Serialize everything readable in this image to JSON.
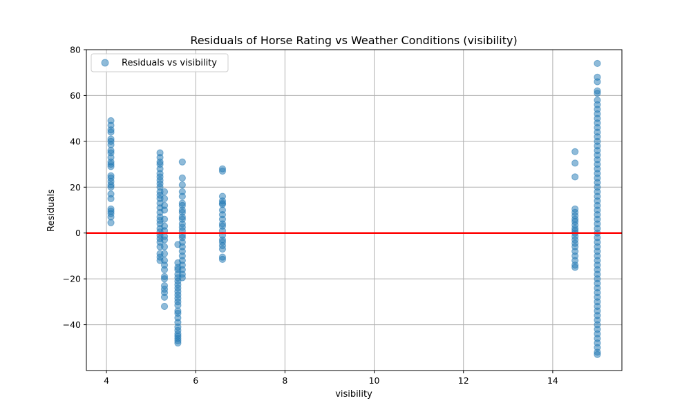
{
  "chart_data": {
    "type": "scatter",
    "title": "Residuals of Horse Rating vs Weather Conditions (visibility)",
    "xlabel": "visibility",
    "ylabel": "Residuals",
    "xlim": [
      3.55,
      15.55
    ],
    "ylim": [
      -60,
      80
    ],
    "xticks": [
      4,
      6,
      8,
      10,
      12,
      14
    ],
    "yticks": [
      -40,
      -20,
      0,
      20,
      40,
      60,
      80
    ],
    "grid": true,
    "legend": "upper-left",
    "point_color": "#1f77b4",
    "reference_line": {
      "y": 0,
      "color": "#ff0000"
    },
    "series": [
      {
        "name": "Residuals vs visibility",
        "points": [
          [
            4.1,
            49
          ],
          [
            4.1,
            47
          ],
          [
            4.1,
            45
          ],
          [
            4.1,
            44
          ],
          [
            4.1,
            41
          ],
          [
            4.1,
            40
          ],
          [
            4.1,
            38.5
          ],
          [
            4.1,
            36
          ],
          [
            4.1,
            35
          ],
          [
            4.1,
            33
          ],
          [
            4.1,
            31
          ],
          [
            4.1,
            30
          ],
          [
            4.1,
            29
          ],
          [
            4.1,
            25
          ],
          [
            4.1,
            24
          ],
          [
            4.1,
            22.5
          ],
          [
            4.1,
            21
          ],
          [
            4.1,
            20
          ],
          [
            4.1,
            17
          ],
          [
            4.1,
            15
          ],
          [
            4.1,
            10.5
          ],
          [
            4.1,
            9.5
          ],
          [
            4.1,
            8.5
          ],
          [
            4.1,
            7
          ],
          [
            4.1,
            4.5
          ],
          [
            5.2,
            35
          ],
          [
            5.2,
            33
          ],
          [
            5.2,
            31
          ],
          [
            5.2,
            30
          ],
          [
            5.2,
            28
          ],
          [
            5.2,
            26
          ],
          [
            5.2,
            24.5
          ],
          [
            5.2,
            23
          ],
          [
            5.2,
            21.5
          ],
          [
            5.2,
            20
          ],
          [
            5.2,
            18
          ],
          [
            5.2,
            16.5
          ],
          [
            5.2,
            15
          ],
          [
            5.2,
            13
          ],
          [
            5.2,
            11
          ],
          [
            5.2,
            9
          ],
          [
            5.2,
            7
          ],
          [
            5.2,
            5.5
          ],
          [
            5.2,
            4
          ],
          [
            5.2,
            2
          ],
          [
            5.2,
            0.5
          ],
          [
            5.2,
            -1
          ],
          [
            5.2,
            -2.5
          ],
          [
            5.2,
            -4
          ],
          [
            5.2,
            -6
          ],
          [
            5.2,
            -9
          ],
          [
            5.2,
            -10.5
          ],
          [
            5.2,
            -12
          ],
          [
            5.3,
            18
          ],
          [
            5.3,
            15
          ],
          [
            5.3,
            12
          ],
          [
            5.3,
            10
          ],
          [
            5.3,
            6
          ],
          [
            5.3,
            3
          ],
          [
            5.3,
            1
          ],
          [
            5.3,
            -1.5
          ],
          [
            5.3,
            -3
          ],
          [
            5.3,
            -6
          ],
          [
            5.3,
            -9
          ],
          [
            5.3,
            -12
          ],
          [
            5.3,
            -14
          ],
          [
            5.3,
            -16
          ],
          [
            5.3,
            -19
          ],
          [
            5.3,
            -20
          ],
          [
            5.3,
            -23
          ],
          [
            5.3,
            -24.5
          ],
          [
            5.3,
            -26
          ],
          [
            5.3,
            -28
          ],
          [
            5.3,
            -32
          ],
          [
            5.6,
            -5
          ],
          [
            5.6,
            -13
          ],
          [
            5.6,
            -15
          ],
          [
            5.6,
            -16
          ],
          [
            5.6,
            -18
          ],
          [
            5.6,
            -19.5
          ],
          [
            5.6,
            -21
          ],
          [
            5.6,
            -22.5
          ],
          [
            5.6,
            -24
          ],
          [
            5.6,
            -25.5
          ],
          [
            5.6,
            -27
          ],
          [
            5.6,
            -28.5
          ],
          [
            5.6,
            -30
          ],
          [
            5.6,
            -31.5
          ],
          [
            5.6,
            -34
          ],
          [
            5.6,
            -35
          ],
          [
            5.6,
            -37
          ],
          [
            5.6,
            -39
          ],
          [
            5.6,
            -41
          ],
          [
            5.6,
            -42.5
          ],
          [
            5.6,
            -44
          ],
          [
            5.6,
            -45
          ],
          [
            5.6,
            -46
          ],
          [
            5.6,
            -47
          ],
          [
            5.6,
            -48
          ],
          [
            5.7,
            31
          ],
          [
            5.7,
            24
          ],
          [
            5.7,
            21
          ],
          [
            5.7,
            18
          ],
          [
            5.7,
            16
          ],
          [
            5.7,
            13
          ],
          [
            5.7,
            12
          ],
          [
            5.7,
            10
          ],
          [
            5.7,
            9
          ],
          [
            5.7,
            7
          ],
          [
            5.7,
            6
          ],
          [
            5.7,
            4
          ],
          [
            5.7,
            2.5
          ],
          [
            5.7,
            1
          ],
          [
            5.7,
            -1
          ],
          [
            5.7,
            -2
          ],
          [
            5.7,
            -4
          ],
          [
            5.7,
            -6
          ],
          [
            5.7,
            -8
          ],
          [
            5.7,
            -10
          ],
          [
            5.7,
            -12
          ],
          [
            5.7,
            -14
          ],
          [
            5.7,
            -16
          ],
          [
            5.7,
            -18
          ],
          [
            5.7,
            -19.5
          ],
          [
            6.6,
            28
          ],
          [
            6.6,
            27
          ],
          [
            6.6,
            16
          ],
          [
            6.6,
            14
          ],
          [
            6.6,
            13
          ],
          [
            6.6,
            12.5
          ],
          [
            6.6,
            10
          ],
          [
            6.6,
            8
          ],
          [
            6.6,
            6
          ],
          [
            6.6,
            4
          ],
          [
            6.6,
            3
          ],
          [
            6.6,
            1
          ],
          [
            6.6,
            -1
          ],
          [
            6.6,
            -3
          ],
          [
            6.6,
            -4
          ],
          [
            6.6,
            -5.5
          ],
          [
            6.6,
            -7
          ],
          [
            6.6,
            -10.5
          ],
          [
            6.6,
            -11.5
          ],
          [
            14.5,
            35.5
          ],
          [
            14.5,
            30.5
          ],
          [
            14.5,
            24.5
          ],
          [
            14.5,
            10.5
          ],
          [
            14.5,
            9
          ],
          [
            14.5,
            7.5
          ],
          [
            14.5,
            6
          ],
          [
            14.5,
            5
          ],
          [
            14.5,
            3.5
          ],
          [
            14.5,
            2
          ],
          [
            14.5,
            1
          ],
          [
            14.5,
            0
          ],
          [
            14.5,
            -1.5
          ],
          [
            14.5,
            -3
          ],
          [
            14.5,
            -4.5
          ],
          [
            14.5,
            -6
          ],
          [
            14.5,
            -8
          ],
          [
            14.5,
            -10
          ],
          [
            14.5,
            -12
          ],
          [
            14.5,
            -14
          ],
          [
            14.5,
            -15
          ],
          [
            15.0,
            74
          ],
          [
            15.0,
            68
          ],
          [
            15.0,
            66
          ],
          [
            15.0,
            62
          ],
          [
            15.0,
            61
          ],
          [
            15.0,
            58
          ],
          [
            15.0,
            56
          ],
          [
            15.0,
            54
          ],
          [
            15.0,
            52
          ],
          [
            15.0,
            50
          ],
          [
            15.0,
            48
          ],
          [
            15.0,
            46
          ],
          [
            15.0,
            44
          ],
          [
            15.0,
            42
          ],
          [
            15.0,
            40
          ],
          [
            15.0,
            38
          ],
          [
            15.0,
            36
          ],
          [
            15.0,
            34
          ],
          [
            15.0,
            32
          ],
          [
            15.0,
            30
          ],
          [
            15.0,
            28
          ],
          [
            15.0,
            26
          ],
          [
            15.0,
            24
          ],
          [
            15.0,
            22
          ],
          [
            15.0,
            20
          ],
          [
            15.0,
            18
          ],
          [
            15.0,
            16
          ],
          [
            15.0,
            14
          ],
          [
            15.0,
            12
          ],
          [
            15.0,
            10
          ],
          [
            15.0,
            8
          ],
          [
            15.0,
            6
          ],
          [
            15.0,
            4
          ],
          [
            15.0,
            2
          ],
          [
            15.0,
            0
          ],
          [
            15.0,
            -2
          ],
          [
            15.0,
            -4
          ],
          [
            15.0,
            -6
          ],
          [
            15.0,
            -8
          ],
          [
            15.0,
            -10
          ],
          [
            15.0,
            -12
          ],
          [
            15.0,
            -14
          ],
          [
            15.0,
            -16
          ],
          [
            15.0,
            -18
          ],
          [
            15.0,
            -20
          ],
          [
            15.0,
            -22
          ],
          [
            15.0,
            -24
          ],
          [
            15.0,
            -26
          ],
          [
            15.0,
            -28
          ],
          [
            15.0,
            -30
          ],
          [
            15.0,
            -32
          ],
          [
            15.0,
            -34
          ],
          [
            15.0,
            -36
          ],
          [
            15.0,
            -38
          ],
          [
            15.0,
            -40
          ],
          [
            15.0,
            -42
          ],
          [
            15.0,
            -44
          ],
          [
            15.0,
            -46
          ],
          [
            15.0,
            -48
          ],
          [
            15.0,
            -50
          ],
          [
            15.0,
            -52
          ],
          [
            15.0,
            -53
          ]
        ]
      }
    ]
  }
}
